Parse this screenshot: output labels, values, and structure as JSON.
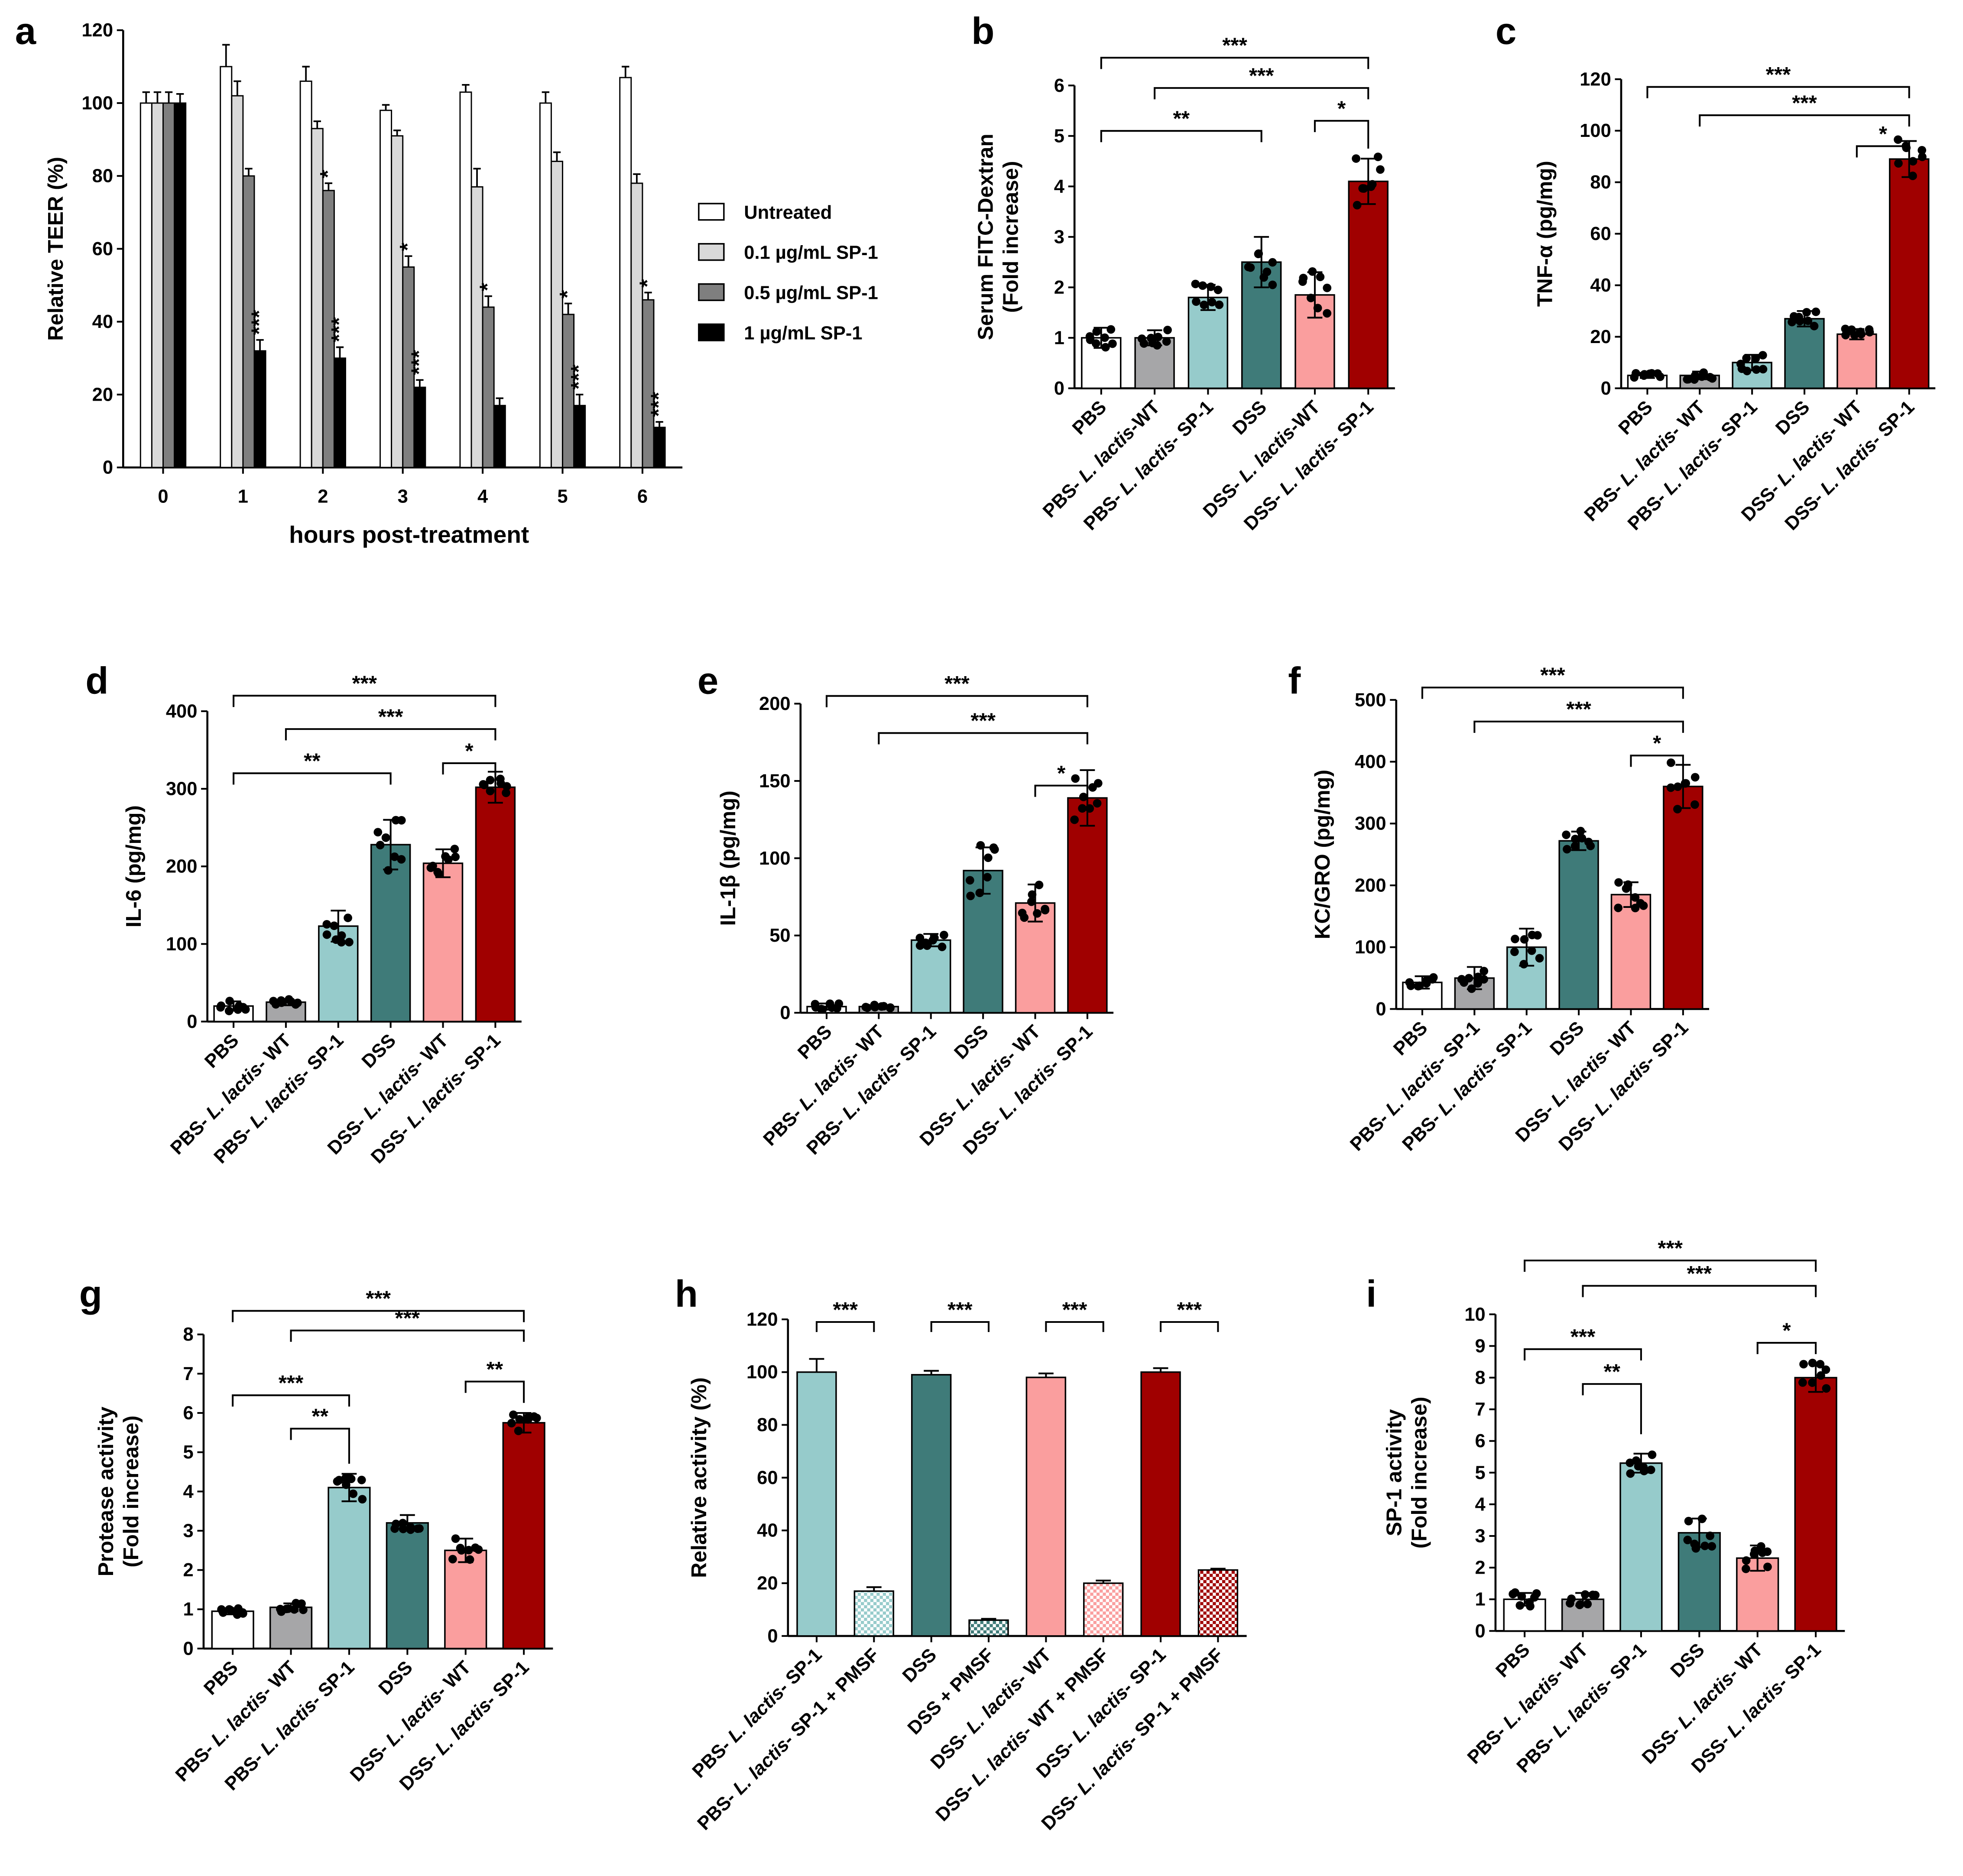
{
  "figure": {
    "title": "Multi-panel bar chart figure (panels a–i)"
  },
  "colors": {
    "white": "#ffffff",
    "grey": "#a6a6a8",
    "teal_light": "#96cbcb",
    "teal_dark": "#3f7b79",
    "pink": "#fa9e9e",
    "red": "#a00000",
    "untreated": "#ffffff",
    "sp01": "#d9d9d9",
    "sp05": "#7f7f7f",
    "sp1": "#000000"
  },
  "chart_data": [
    {
      "panel": "a",
      "type": "bar",
      "categories": [
        "0",
        "1",
        "2",
        "3",
        "4",
        "5",
        "6"
      ],
      "xlabel": "hours post-treatment",
      "ylabel": "Relative TEER (%)",
      "ylim": [
        0,
        120
      ],
      "yticks": [
        0,
        20,
        40,
        60,
        80,
        100,
        120
      ],
      "legend": "right",
      "series": [
        {
          "name": "Untreated",
          "color": "untreated",
          "values": [
            100,
            110,
            106,
            98,
            103,
            100,
            107
          ],
          "err": [
            3,
            6,
            4,
            1.5,
            2,
            3,
            3
          ]
        },
        {
          "name": "0.1 µg/mL SP-1",
          "color": "sp01",
          "values": [
            100,
            102,
            93,
            91,
            77,
            84,
            78
          ],
          "err": [
            3,
            4,
            2,
            1.5,
            5,
            2.5,
            2.5
          ]
        },
        {
          "name": "0.5 µg/mL SP-1",
          "color": "sp05",
          "values": [
            100,
            80,
            76,
            55,
            44,
            42,
            46
          ],
          "err": [
            3,
            2,
            2,
            3,
            3,
            3,
            2
          ]
        },
        {
          "name": "1 µg/mL SP-1",
          "color": "sp1",
          "values": [
            100,
            32,
            30,
            22,
            17,
            17,
            11
          ],
          "err": [
            2.5,
            3,
            3,
            2,
            2,
            3,
            1.5
          ]
        }
      ],
      "sig": [
        {
          "cat": 1,
          "series": 3,
          "label": "***"
        },
        {
          "cat": 2,
          "series": 2,
          "label": "*"
        },
        {
          "cat": 2,
          "series": 3,
          "label": "***"
        },
        {
          "cat": 3,
          "series": 2,
          "label": "*"
        },
        {
          "cat": 3,
          "series": 3,
          "label": "***"
        },
        {
          "cat": 4,
          "series": 2,
          "label": "*"
        },
        {
          "cat": 5,
          "series": 2,
          "label": "*"
        },
        {
          "cat": 5,
          "series": 3,
          "label": "***"
        },
        {
          "cat": 6,
          "series": 2,
          "label": "*"
        },
        {
          "cat": 6,
          "series": 3,
          "label": "***"
        }
      ]
    },
    {
      "panel": "b",
      "type": "bar",
      "categories": [
        "PBS",
        "PBS- L. lactis-WT",
        "PBS- L. lactis- SP-1",
        "DSS",
        "DSS- L. lactis-WT",
        "DSS- L. lactis- SP-1"
      ],
      "colors": [
        "white",
        "grey",
        "teal_light",
        "teal_dark",
        "pink",
        "red"
      ],
      "values": [
        1.0,
        1.0,
        1.8,
        2.5,
        1.85,
        4.1
      ],
      "err": [
        0.2,
        0.15,
        0.25,
        0.5,
        0.45,
        0.45
      ],
      "ylabel": [
        "Serum FITC-Dextran",
        "(Fold increase)"
      ],
      "ylim": [
        0,
        6
      ],
      "yticks": [
        0,
        1,
        2,
        3,
        4,
        5,
        6
      ],
      "brackets": [
        {
          "from": 0,
          "to": 5,
          "label": "***",
          "y": 6.55
        },
        {
          "from": 1,
          "to": 5,
          "label": "***",
          "y": 5.95
        },
        {
          "from": 0,
          "to": 3,
          "label": "**",
          "y": 5.1
        },
        {
          "from": 4,
          "to": 5,
          "label": "*",
          "y": 5.3
        }
      ]
    },
    {
      "panel": "c",
      "type": "bar",
      "categories": [
        "PBS",
        "PBS- L. lactis- WT",
        "PBS- L. lactis- SP-1",
        "DSS",
        "DSS- L. lactis- WT",
        "DSS- L. lactis- SP-1"
      ],
      "colors": [
        "white",
        "grey",
        "teal_light",
        "teal_dark",
        "pink",
        "red"
      ],
      "values": [
        5,
        5,
        10,
        27,
        21,
        89
      ],
      "err": [
        1,
        1.5,
        3,
        3,
        2,
        7
      ],
      "ylabel": [
        "TNF-α (pg/mg)"
      ],
      "ylim": [
        0,
        120
      ],
      "yticks": [
        0,
        20,
        40,
        60,
        80,
        100,
        120
      ],
      "brackets": [
        {
          "from": 0,
          "to": 5,
          "label": "***",
          "y": 117
        },
        {
          "from": 1,
          "to": 5,
          "label": "***",
          "y": 106
        },
        {
          "from": 4,
          "to": 5,
          "label": "*",
          "y": 94
        }
      ]
    },
    {
      "panel": "d",
      "type": "bar",
      "categories": [
        "PBS",
        "PBS- L. lactis- WT",
        "PBS- L. lactis- SP-1",
        "DSS",
        "DSS- L. lactis- WT",
        "DSS- L. lactis- SP-1"
      ],
      "colors": [
        "white",
        "grey",
        "teal_light",
        "teal_dark",
        "pink",
        "red"
      ],
      "values": [
        20,
        25,
        123,
        228,
        204,
        302
      ],
      "err": [
        6,
        4,
        20,
        32,
        18,
        20
      ],
      "ylabel": [
        "IL-6 (pg/mg)"
      ],
      "ylim": [
        0,
        400
      ],
      "yticks": [
        0,
        100,
        200,
        300,
        400
      ],
      "brackets": [
        {
          "from": 0,
          "to": 5,
          "label": "***",
          "y": 420
        },
        {
          "from": 1,
          "to": 5,
          "label": "***",
          "y": 377
        },
        {
          "from": 0,
          "to": 3,
          "label": "**",
          "y": 320
        },
        {
          "from": 4,
          "to": 5,
          "label": "*",
          "y": 333
        }
      ]
    },
    {
      "panel": "e",
      "type": "bar",
      "categories": [
        "PBS",
        "PBS- L. lactis- WT",
        "PBS- L. lactis- SP-1",
        "DSS",
        "DSS- L. lactis- WT",
        "DSS- L. lactis- SP-1"
      ],
      "colors": [
        "white",
        "grey",
        "teal_light",
        "teal_dark",
        "pink",
        "red"
      ],
      "values": [
        4,
        4,
        47,
        92,
        71,
        139
      ],
      "err": [
        2,
        1,
        4,
        15,
        12,
        18
      ],
      "ylabel": [
        "IL-1β (pg/mg)"
      ],
      "ylim": [
        0,
        200
      ],
      "yticks": [
        0,
        50,
        100,
        150,
        200
      ],
      "brackets": [
        {
          "from": 0,
          "to": 5,
          "label": "***",
          "y": 205
        },
        {
          "from": 1,
          "to": 5,
          "label": "***",
          "y": 181
        },
        {
          "from": 4,
          "to": 5,
          "label": "*",
          "y": 147
        }
      ]
    },
    {
      "panel": "f",
      "type": "bar",
      "categories": [
        "PBS",
        "PBS- L. lactis- SP-1",
        "PBS- L. lactis- SP-1",
        "DSS",
        "DSS- L. lactis- WT",
        "DSS- L. lactis- SP-1"
      ],
      "colors": [
        "white",
        "grey",
        "teal_light",
        "teal_dark",
        "pink",
        "red"
      ],
      "values": [
        43,
        50,
        100,
        272,
        185,
        360
      ],
      "err": [
        10,
        18,
        30,
        15,
        20,
        35
      ],
      "ylabel": [
        "KC/GRO (pg/mg)"
      ],
      "ylim": [
        0,
        500
      ],
      "yticks": [
        0,
        100,
        200,
        300,
        400,
        500
      ],
      "brackets": [
        {
          "from": 0,
          "to": 5,
          "label": "***",
          "y": 520
        },
        {
          "from": 1,
          "to": 5,
          "label": "***",
          "y": 465
        },
        {
          "from": 4,
          "to": 5,
          "label": "*",
          "y": 410
        }
      ]
    },
    {
      "panel": "g",
      "type": "bar",
      "categories": [
        "PBS",
        "PBS- L. lactis- WT",
        "PBS- L. lactis- SP-1",
        "DSS",
        "DSS- L. lactis- WT",
        "DSS- L. lactis- SP-1"
      ],
      "colors": [
        "white",
        "grey",
        "teal_light",
        "teal_dark",
        "pink",
        "red"
      ],
      "values": [
        0.95,
        1.05,
        4.1,
        3.2,
        2.5,
        5.75
      ],
      "err": [
        0.08,
        0.1,
        0.35,
        0.2,
        0.3,
        0.25
      ],
      "ylabel": [
        "Protease activity",
        "(Fold increase)"
      ],
      "ylim": [
        0,
        8
      ],
      "yticks": [
        0,
        1,
        2,
        3,
        4,
        5,
        6,
        7,
        8
      ],
      "brackets": [
        {
          "from": 0,
          "to": 5,
          "label": "***",
          "y": 8.6
        },
        {
          "from": 1,
          "to": 5,
          "label": "***",
          "y": 8.1
        },
        {
          "from": 0,
          "to": 2,
          "label": "***",
          "y": 6.45
        },
        {
          "from": 1,
          "to": 2,
          "label": "**",
          "y": 5.6
        },
        {
          "from": 4,
          "to": 5,
          "label": "**",
          "y": 6.8
        }
      ]
    },
    {
      "panel": "h",
      "type": "bar",
      "categories": [
        "PBS- L. lactis- SP-1",
        "PBS- L. lactis- SP-1 + PMSF",
        "DSS",
        "DSS + PMSF",
        "DSS- L. lactis- WT",
        "DSS- L. lactis- WT + PMSF",
        "DSS- L. lactis- SP-1",
        "DSS- L. lactis- SP-1 + PMSF"
      ],
      "colors": [
        "teal_light",
        "teal_light",
        "teal_dark",
        "teal_dark",
        "pink",
        "pink",
        "red",
        "red"
      ],
      "hatched": [
        false,
        true,
        false,
        true,
        false,
        true,
        false,
        true
      ],
      "values": [
        100,
        17,
        99,
        6,
        98,
        20,
        100,
        25
      ],
      "err": [
        5,
        1.5,
        1.5,
        0.5,
        1.5,
        1,
        1.5,
        0.5
      ],
      "ylabel": [
        "Relative activity (%)"
      ],
      "ylim": [
        0,
        120
      ],
      "yticks": [
        0,
        20,
        40,
        60,
        80,
        100,
        120
      ],
      "brackets": [
        {
          "from": 0,
          "to": 1,
          "label": "***",
          "y": 119
        },
        {
          "from": 2,
          "to": 3,
          "label": "***",
          "y": 119
        },
        {
          "from": 4,
          "to": 5,
          "label": "***",
          "y": 119
        },
        {
          "from": 6,
          "to": 7,
          "label": "***",
          "y": 119
        }
      ]
    },
    {
      "panel": "i",
      "type": "bar",
      "categories": [
        "PBS",
        "PBS- L. lactis- WT",
        "PBS- L. lactis- SP-1",
        "DSS",
        "DSS- L. lactis- WT",
        "DSS- L. lactis- SP-1"
      ],
      "colors": [
        "white",
        "grey",
        "teal_light",
        "teal_dark",
        "pink",
        "red"
      ],
      "values": [
        1.0,
        1.0,
        5.3,
        3.1,
        2.3,
        8.0
      ],
      "err": [
        0.2,
        0.2,
        0.3,
        0.45,
        0.4,
        0.45
      ],
      "ylabel": [
        "SP-1 activity",
        "(Fold increase)"
      ],
      "ylim": [
        0,
        10
      ],
      "yticks": [
        0,
        1,
        2,
        3,
        4,
        5,
        6,
        7,
        8,
        9,
        10
      ],
      "brackets": [
        {
          "from": 0,
          "to": 5,
          "label": "***",
          "y": 11.7
        },
        {
          "from": 1,
          "to": 5,
          "label": "***",
          "y": 10.9
        },
        {
          "from": 0,
          "to": 2,
          "label": "***",
          "y": 8.9
        },
        {
          "from": 1,
          "to": 2,
          "label": "**",
          "y": 7.8
        },
        {
          "from": 4,
          "to": 5,
          "label": "*",
          "y": 9.1
        }
      ]
    }
  ]
}
